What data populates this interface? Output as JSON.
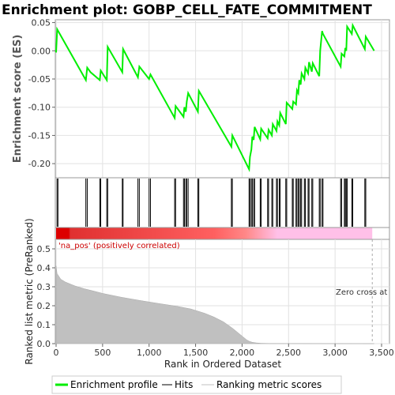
{
  "chart_data": {
    "type": "line",
    "title": "Enrichment plot: GOBP_CELL_FATE_COMMITMENT",
    "top_panel": {
      "ylabel": "Enrichment score (ES)",
      "ylim": [
        -0.225,
        0.055
      ],
      "yticks": [
        0.05,
        0.0,
        -0.05,
        -0.1,
        -0.15,
        -0.2
      ],
      "ytick_labels": [
        "0.05",
        "0.00",
        "-0.05",
        "-0.10",
        "-0.15",
        "-0.20"
      ],
      "grid": true,
      "series": [
        {
          "name": "Enrichment profile",
          "color": "#00ee00",
          "x": [
            0,
            12,
            320,
            335,
            370,
            470,
            480,
            545,
            555,
            712,
            720,
            880,
            895,
            1000,
            1015,
            1275,
            1285,
            1370,
            1380,
            1395,
            1405,
            1420,
            1525,
            1535,
            1885,
            1895,
            2075,
            2085,
            2100,
            2110,
            2125,
            2135,
            2195,
            2205,
            2275,
            2285,
            2320,
            2330,
            2370,
            2380,
            2400,
            2410,
            2470,
            2480,
            2540,
            2550,
            2580,
            2590,
            2605,
            2615,
            2630,
            2640,
            2670,
            2680,
            2710,
            2720,
            2750,
            2760,
            2830,
            2840,
            2860,
            2870,
            3060,
            3070,
            3100,
            3110,
            3120,
            3130,
            3180,
            3190,
            3320,
            3330,
            3420
          ],
          "y": [
            -0.003,
            0.038,
            -0.052,
            -0.03,
            -0.038,
            -0.052,
            -0.035,
            -0.052,
            0.007,
            -0.038,
            0.003,
            -0.047,
            -0.028,
            -0.05,
            -0.042,
            -0.119,
            -0.098,
            -0.117,
            -0.1,
            -0.108,
            -0.09,
            -0.075,
            -0.108,
            -0.071,
            -0.17,
            -0.15,
            -0.21,
            -0.188,
            -0.175,
            -0.152,
            -0.158,
            -0.135,
            -0.157,
            -0.138,
            -0.155,
            -0.14,
            -0.15,
            -0.13,
            -0.142,
            -0.125,
            -0.132,
            -0.11,
            -0.13,
            -0.092,
            -0.103,
            -0.09,
            -0.095,
            -0.07,
            -0.075,
            -0.052,
            -0.06,
            -0.04,
            -0.05,
            -0.03,
            -0.04,
            -0.02,
            -0.037,
            -0.022,
            -0.045,
            0.0,
            0.035,
            0.03,
            -0.028,
            -0.005,
            -0.01,
            0.005,
            0.0,
            0.043,
            0.03,
            0.045,
            0.003,
            0.025,
            0.0
          ]
        }
      ]
    },
    "hits_panel": {
      "series_name": "Hits",
      "hit_positions": [
        10,
        20,
        320,
        335,
        470,
        480,
        545,
        555,
        712,
        720,
        880,
        895,
        1000,
        1015,
        1275,
        1285,
        1370,
        1380,
        1395,
        1405,
        1420,
        1525,
        1535,
        1885,
        1895,
        2075,
        2085,
        2100,
        2110,
        2125,
        2135,
        2195,
        2205,
        2275,
        2285,
        2320,
        2330,
        2370,
        2380,
        2400,
        2410,
        2470,
        2480,
        2540,
        2550,
        2580,
        2590,
        2605,
        2615,
        2630,
        2640,
        2670,
        2680,
        2710,
        2720,
        2750,
        2760,
        2830,
        2840,
        2860,
        2870,
        3060,
        3070,
        3100,
        3110,
        3120,
        3130,
        3180,
        3190,
        3320,
        3330
      ]
    },
    "heat_band": {
      "gradient": [
        {
          "at": 0.0,
          "color": "#dd0000"
        },
        {
          "at": 0.04,
          "color": "#dd0000"
        },
        {
          "at": 0.045,
          "color": "#e03030"
        },
        {
          "at": 0.5,
          "color": "#ff6060"
        },
        {
          "at": 0.6,
          "color": "#ff8888"
        },
        {
          "at": 0.7,
          "color": "#ffc0e8"
        },
        {
          "at": 1.0,
          "color": "#ffc0e8"
        }
      ],
      "label_pos": "'na_pos' (positively correlated)",
      "label_pos_color": "#cc0000"
    },
    "bottom_panel": {
      "ylabel": "Ranked list metric (PreRanked)",
      "xlabel": "Rank in Ordered Dataset",
      "ylim": [
        0.0,
        0.55
      ],
      "yticks": [
        0.0,
        0.1,
        0.2,
        0.3,
        0.4,
        0.5
      ],
      "ytick_labels": [
        "0.0",
        "0.1",
        "0.2",
        "0.3",
        "0.4",
        "0.5"
      ],
      "xlim": [
        0,
        3500
      ],
      "xticks": [
        0,
        500,
        1000,
        1500,
        2000,
        2500,
        3000,
        3500
      ],
      "xtick_labels": [
        "0",
        "500",
        "1,000",
        "1,500",
        "2,000",
        "2,500",
        "3,000",
        "3,500"
      ],
      "series": [
        {
          "name": "Ranking metric scores",
          "color": "#c0c0c0",
          "x": [
            0,
            10,
            50,
            100,
            200,
            300,
            400,
            500,
            700,
            900,
            1100,
            1300,
            1450,
            1600,
            1700,
            1800,
            1900,
            2000,
            2050,
            2080,
            2110,
            2150,
            2200,
            2300,
            3420
          ],
          "y": [
            0.41,
            0.37,
            0.34,
            0.325,
            0.305,
            0.29,
            0.278,
            0.265,
            0.245,
            0.228,
            0.212,
            0.197,
            0.183,
            0.16,
            0.14,
            0.115,
            0.08,
            0.04,
            0.02,
            0.012,
            0.007,
            0.004,
            0.002,
            0.001,
            0.0
          ]
        }
      ],
      "zero_cross_label": "Zero cross at",
      "zero_cross_x": 3400
    },
    "legend": {
      "placement": "bottom",
      "entries": [
        {
          "label": "Enrichment profile",
          "color": "#00ee00"
        },
        {
          "label": "Hits",
          "color": "#000000"
        },
        {
          "label": "Ranking metric scores",
          "color": "#c0c0c0"
        }
      ]
    }
  }
}
